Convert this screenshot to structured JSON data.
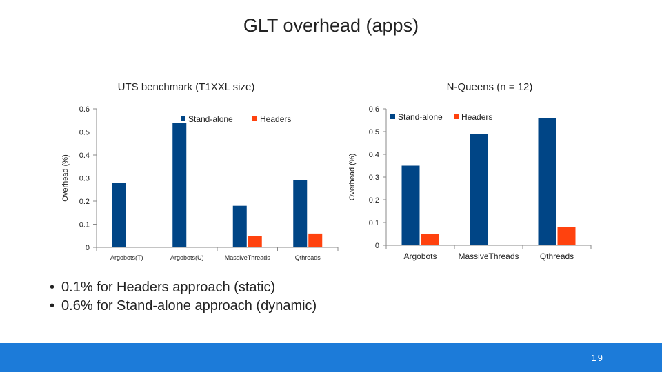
{
  "slide": {
    "title": "GLT overhead (apps)",
    "bullets": [
      "0.1% for Headers approach (static)",
      "0.6% for Stand-alone approach (dynamic)"
    ],
    "page_number": "19"
  },
  "colors": {
    "stand_alone": "#004586",
    "headers": "#ff420e",
    "footer": "#1c7bd9"
  },
  "chart_data": [
    {
      "type": "bar",
      "title": "UTS benchmark (T1XXL size)",
      "ylabel": "Overhead (%)",
      "xlabel": "",
      "ylim": [
        0,
        0.6
      ],
      "yticks": [
        "0",
        "0.1",
        "0.2",
        "0.3",
        "0.4",
        "0.5",
        "0.6"
      ],
      "grid": false,
      "legend": "top-right",
      "categories": [
        "Argobots(T)",
        "Argobots(U)",
        "MassiveThreads",
        "Qthreads"
      ],
      "series": [
        {
          "name": "Stand-alone",
          "color": "#004586",
          "values": [
            0.28,
            0.54,
            0.18,
            0.29
          ]
        },
        {
          "name": "Headers",
          "color": "#ff420e",
          "values": [
            null,
            null,
            0.05,
            0.06
          ]
        }
      ]
    },
    {
      "type": "bar",
      "title": "N-Queens (n = 12)",
      "ylabel": "Overhead (%)",
      "xlabel": "",
      "ylim": [
        0,
        0.6
      ],
      "yticks": [
        "0",
        "0.1",
        "0.2",
        "0.3",
        "0.4",
        "0.5",
        "0.6"
      ],
      "grid": false,
      "legend": "top-right",
      "categories": [
        "Argobots",
        "MassiveThreads",
        "Qthreads"
      ],
      "series": [
        {
          "name": "Stand-alone",
          "color": "#004586",
          "values": [
            0.35,
            0.49,
            0.56
          ]
        },
        {
          "name": "Headers",
          "color": "#ff420e",
          "values": [
            0.05,
            null,
            0.08
          ]
        }
      ]
    }
  ]
}
